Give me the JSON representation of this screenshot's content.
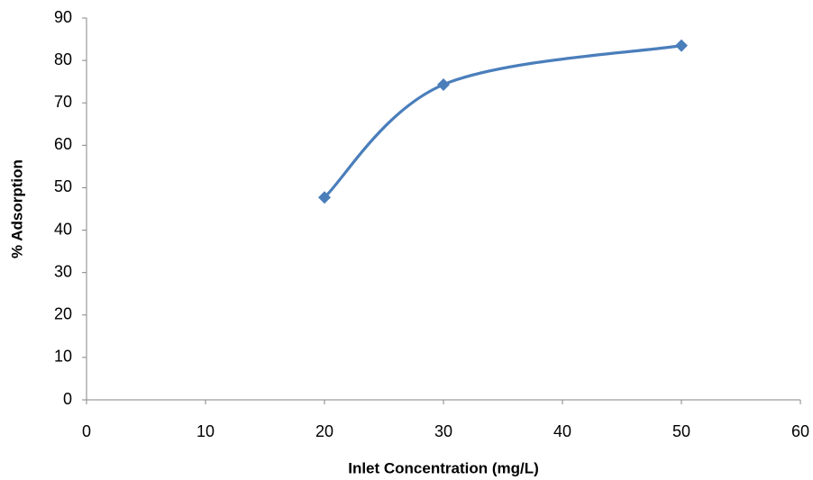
{
  "chart_data": {
    "type": "scatter",
    "smooth": true,
    "x_label": "Inlet Concentration (mg/L)",
    "y_label": "% Adsorption",
    "x": [
      20,
      30,
      50
    ],
    "series": [
      {
        "color": "#4a7ebb",
        "values": [
          47.7,
          74.3,
          83.5
        ]
      }
    ],
    "xlim": [
      0,
      60
    ],
    "xticks": [
      0,
      10,
      20,
      30,
      40,
      50,
      60
    ],
    "ylim": [
      0,
      90
    ],
    "yticks": [
      0,
      10,
      20,
      30,
      40,
      50,
      60,
      70,
      80,
      90
    ],
    "grid": false
  }
}
